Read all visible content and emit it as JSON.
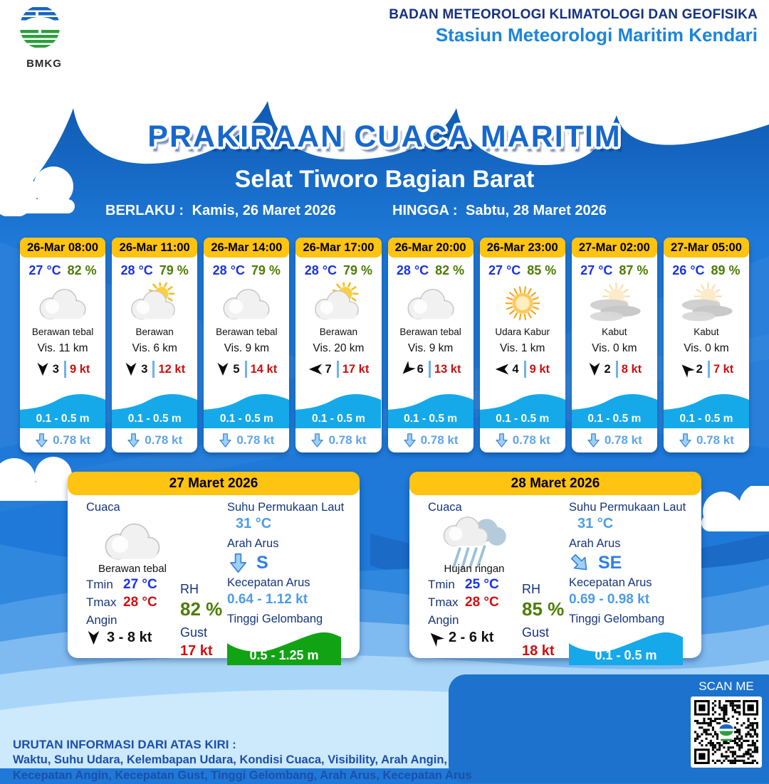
{
  "org": {
    "line1": "BADAN METEOROLOGI KLIMATOLOGI DAN GEOFISIKA",
    "line2": "Stasiun Meteorologi Maritim Kendari",
    "logo_label": "BMKG"
  },
  "title": "PRAKIRAAN CUACA MARITIM",
  "subtitle": "Selat Tiworo Bagian Barat",
  "validity": {
    "from_label": "BERLAKU :",
    "from_value": "Kamis, 26 Maret 2026",
    "to_label": "HINGGA :",
    "to_value": "Sabtu, 28 Maret 2026"
  },
  "forecast_cards": [
    {
      "time": "26-Mar 08:00",
      "temp": "27 °C",
      "rh": "82 %",
      "icon": "cloud",
      "condition": "Berawan tebal",
      "vis": "Vis. 11 km",
      "wind_speed": "3",
      "wind_gust": "9 kt",
      "wind_dir_deg": 0,
      "wave": "0.1 - 0.5 m",
      "current_speed": "0.78 kt",
      "current_dir_deg": 0
    },
    {
      "time": "26-Mar 11:00",
      "temp": "28 °C",
      "rh": "79 %",
      "icon": "suncloud",
      "condition": "Berawan",
      "vis": "Vis. 6 km",
      "wind_speed": "3",
      "wind_gust": "12 kt",
      "wind_dir_deg": 0,
      "wave": "0.1 - 0.5 m",
      "current_speed": "0.78 kt",
      "current_dir_deg": 0
    },
    {
      "time": "26-Mar 14:00",
      "temp": "28 °C",
      "rh": "79 %",
      "icon": "cloud",
      "condition": "Berawan tebal",
      "vis": "Vis. 9 km",
      "wind_speed": "5",
      "wind_gust": "14 kt",
      "wind_dir_deg": 0,
      "wave": "0.1 - 0.5 m",
      "current_speed": "0.78 kt",
      "current_dir_deg": 0
    },
    {
      "time": "26-Mar 17:00",
      "temp": "28 °C",
      "rh": "79 %",
      "icon": "suncloud",
      "condition": "Berawan",
      "vis": "Vis. 20 km",
      "wind_speed": "7",
      "wind_gust": "17 kt",
      "wind_dir_deg": 90,
      "wave": "0.1 - 0.5 m",
      "current_speed": "0.78 kt",
      "current_dir_deg": 0
    },
    {
      "time": "26-Mar 20:00",
      "temp": "28 °C",
      "rh": "82 %",
      "icon": "cloud",
      "condition": "Berawan tebal",
      "vis": "Vis. 9 km",
      "wind_speed": "6",
      "wind_gust": "13 kt",
      "wind_dir_deg": 45,
      "wave": "0.1 - 0.5 m",
      "current_speed": "0.78 kt",
      "current_dir_deg": 0
    },
    {
      "time": "26-Mar 23:00",
      "temp": "27 °C",
      "rh": "85 %",
      "icon": "haze",
      "condition": "Udara Kabur",
      "vis": "Vis. 1 km",
      "wind_speed": "4",
      "wind_gust": "9 kt",
      "wind_dir_deg": 90,
      "wave": "0.1 - 0.5 m",
      "current_speed": "0.78 kt",
      "current_dir_deg": 0
    },
    {
      "time": "27-Mar 02:00",
      "temp": "27 °C",
      "rh": "87 %",
      "icon": "fog",
      "condition": "Kabut",
      "vis": "Vis. 0 km",
      "wind_speed": "2",
      "wind_gust": "8 kt",
      "wind_dir_deg": 0,
      "wave": "0.1 - 0.5 m",
      "current_speed": "0.78 kt",
      "current_dir_deg": 0
    },
    {
      "time": "27-Mar 05:00",
      "temp": "26 °C",
      "rh": "89 %",
      "icon": "fog",
      "condition": "Kabut",
      "vis": "Vis. 0 km",
      "wind_speed": "2",
      "wind_gust": "7 kt",
      "wind_dir_deg": 135,
      "wave": "0.1 - 0.5 m",
      "current_speed": "0.78 kt",
      "current_dir_deg": 0
    }
  ],
  "day_labels": {
    "cuaca": "Cuaca",
    "tmin": "Tmin",
    "tmax": "Tmax",
    "angin": "Angin",
    "rh": "RH",
    "gust": "Gust",
    "sst": "Suhu Permukaan Laut",
    "arah_arus": "Arah Arus",
    "kecepatan_arus": "Kecepatan Arus",
    "tinggi_gelombang": "Tinggi Gelombang"
  },
  "day_cards": [
    {
      "date": "27 Maret 2026",
      "icon": "cloud",
      "condition": "Berawan tebal",
      "tmin": "27 °C",
      "tmax": "28 °C",
      "wind_dir_deg": 0,
      "wind_range": "3 - 8 kt",
      "rh": "82 %",
      "gust": "17 kt",
      "sst": "31 °C",
      "current_dir": "S",
      "current_dir_deg": 0,
      "current_speed": "0.64 - 1.12 kt",
      "wave": "0.5 - 1.25 m",
      "wave_color": "#12A314"
    },
    {
      "date": "28 Maret 2026",
      "icon": "rain",
      "condition": "Hujan ringan",
      "tmin": "25 °C",
      "tmax": "28 °C",
      "wind_dir_deg": 135,
      "wind_range": "2 - 6 kt",
      "rh": "85 %",
      "gust": "18 kt",
      "sst": "31 °C",
      "current_dir": "SE",
      "current_dir_deg": -45,
      "current_speed": "0.69 - 0.98 kt",
      "wave": "0.1 - 0.5 m",
      "wave_color": "#16A9E9"
    }
  ],
  "footer": {
    "heading": "URUTAN INFORMASI DARI ATAS KIRI :",
    "line1": "Waktu, Suhu Udara, Kelembapan Udara, Kondisi Cuaca, Visibility, Arah Angin,",
    "line2": "Kecepatan Angin, Kecepatan Gust, Tinggi Gelombang, Arah Arus, Kecepatan Arus",
    "scan_label": "SCAN ME"
  },
  "colors": {
    "background_blue": "#1E79D8",
    "wave_dark_blue": "#1160B8",
    "header_yellow": "#FFC312",
    "temp_blue": "#1733E8",
    "humidity_green": "#4C7D04",
    "gust_red": "#CC0F0F",
    "wave_cyan": "#16A9E9",
    "wave_green": "#12A314",
    "current_light_blue": "#5FA4E8",
    "label_navy": "#16357E"
  }
}
